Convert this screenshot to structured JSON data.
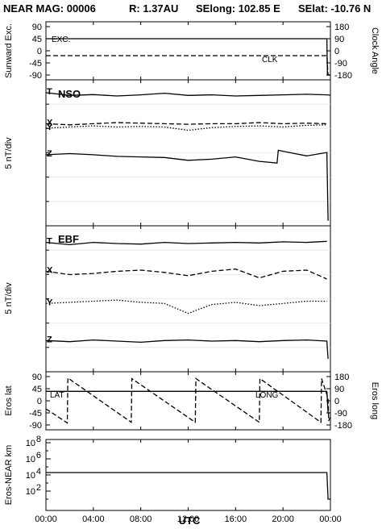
{
  "header": {
    "mission": "NEAR MAG: 00006",
    "distance": "R: 1.37AU",
    "selong": "SElong:  102.85 E",
    "selat": "SElat:  -10.76 N"
  },
  "chart_data": [
    {
      "type": "line",
      "panel": "sunward",
      "ylabel_left": "Sunward Exc.",
      "ylabel_right": "Clock Angle",
      "yticks_left": [
        "90",
        "45",
        "0",
        "-45",
        "-90"
      ],
      "yticks_right": [
        "180",
        "90",
        "0",
        "-90",
        "-180"
      ],
      "ylim_left": [
        -90,
        90
      ],
      "ylim_right": [
        -180,
        180
      ],
      "series": [
        {
          "name": "EXC.",
          "style": "solid",
          "x": [
            0,
            23.7,
            23.75,
            24.0
          ],
          "y": [
            45,
            45,
            -90,
            -90
          ]
        },
        {
          "name": "CLK",
          "style": "dashed",
          "x": [
            0,
            23.7,
            23.8,
            24.0
          ],
          "y": [
            -18,
            -18,
            -130,
            -120
          ]
        }
      ]
    },
    {
      "type": "line",
      "panel": "NSO",
      "title": "NSO",
      "ylabel": "5 nT/div",
      "series": [
        {
          "name": "T",
          "style": "solid",
          "x": [
            0,
            2,
            4,
            6,
            8,
            10,
            12,
            14,
            16,
            18,
            20,
            22,
            23.7,
            24.0
          ],
          "y": [
            0.6,
            0.1,
            0.25,
            0.0,
            0.2,
            0.5,
            0.1,
            0.2,
            0.0,
            0.1,
            0.2,
            0.3,
            0.2,
            0.15
          ]
        },
        {
          "name": "X",
          "style": "dashed",
          "x": [
            0,
            2,
            4,
            6,
            8,
            10,
            12,
            14,
            16,
            18,
            20,
            22,
            23.7
          ],
          "y": [
            -5.0,
            -5.2,
            -5.0,
            -4.8,
            -4.9,
            -5.0,
            -5.1,
            -5.0,
            -5.0,
            -4.8,
            -5.0,
            -4.9,
            -5.0
          ]
        },
        {
          "name": "Y",
          "style": "dotted",
          "x": [
            0,
            2,
            4,
            6,
            8,
            10,
            12,
            14,
            16,
            18,
            20,
            22,
            23.7
          ],
          "y": [
            -5.8,
            -5.6,
            -5.4,
            -5.6,
            -5.5,
            -5.6,
            -6.2,
            -5.7,
            -5.5,
            -5.4,
            -5.6,
            -5.3,
            -5.2
          ]
        },
        {
          "name": "Z",
          "style": "solid",
          "x": [
            0,
            2,
            4,
            6,
            8,
            10,
            12,
            14,
            16,
            18,
            19.5,
            19.6,
            21,
            22,
            23.7,
            23.8
          ],
          "y": [
            -10.6,
            -10.4,
            -10.6,
            -10.9,
            -11.0,
            -11.1,
            -11.6,
            -11.4,
            -11.0,
            -11.8,
            -12.1,
            -9.8,
            -10.4,
            -10.8,
            -10.2,
            -22.5
          ]
        }
      ]
    },
    {
      "type": "line",
      "panel": "EBF",
      "title": "EBF",
      "ylabel": "5 nT/div",
      "series": [
        {
          "name": "T",
          "style": "solid",
          "x": [
            0,
            2,
            4,
            6,
            8,
            10,
            12,
            14,
            16,
            18,
            20,
            22,
            23.7
          ],
          "y": [
            0.2,
            -0.2,
            0.2,
            0.0,
            -0.1,
            0.2,
            0.0,
            0.1,
            0.2,
            0.1,
            0.3,
            0.2,
            0.4
          ]
        },
        {
          "name": "X",
          "style": "dashed",
          "x": [
            0,
            2,
            4,
            6,
            8,
            10,
            12,
            14,
            16,
            18,
            20,
            22,
            23.7
          ],
          "y": [
            -5.0,
            -5.6,
            -5.4,
            -5.0,
            -4.8,
            -5.2,
            -5.8,
            -5.0,
            -4.6,
            -6.2,
            -5.0,
            -4.8,
            -6.4
          ]
        },
        {
          "name": "Y",
          "style": "dotted",
          "x": [
            0,
            2,
            4,
            6,
            8,
            10,
            12,
            14,
            16,
            18,
            20,
            22,
            23.7
          ],
          "y": [
            -10.8,
            -10.6,
            -10.4,
            -10.2,
            -10.6,
            -10.8,
            -12.6,
            -11.0,
            -10.6,
            -11.2,
            -10.8,
            -10.4,
            -10.4
          ]
        },
        {
          "name": "Z",
          "style": "solid",
          "x": [
            0,
            2,
            4,
            6,
            8,
            10,
            12,
            14,
            16,
            18,
            20,
            22,
            23.7,
            23.8
          ],
          "y": [
            -17.5,
            -17.7,
            -17.4,
            -17.6,
            -17.8,
            -17.5,
            -17.4,
            -17.6,
            -17.5,
            -17.7,
            -17.5,
            -17.4,
            -17.6,
            -20.8
          ]
        }
      ]
    },
    {
      "type": "line",
      "panel": "eros",
      "ylabel_left": "Eros lat",
      "ylabel_right": "Eros long",
      "yticks_left": [
        "90",
        "45",
        "0",
        "-45",
        "-90"
      ],
      "yticks_right": [
        "180",
        "90",
        "0",
        "-90",
        "-180"
      ],
      "ylim_left": [
        -90,
        90
      ],
      "ylim_right": [
        -180,
        180
      ],
      "series": [
        {
          "name": "LAT",
          "style": "solid",
          "x": [
            0,
            23.7,
            23.8,
            24.0
          ],
          "y": [
            35,
            35,
            -45,
            -45
          ]
        },
        {
          "name": "LONG",
          "style": "dashed",
          "x": [
            0,
            1.8,
            1.85,
            7.2,
            7.25,
            12.6,
            12.65,
            18.0,
            18.05,
            23.2,
            23.25,
            23.8,
            23.85,
            24.0
          ],
          "y": [
            -60,
            -165,
            170,
            -160,
            165,
            -160,
            165,
            -160,
            165,
            -160,
            165,
            20,
            -150,
            -120
          ]
        }
      ]
    },
    {
      "type": "line",
      "panel": "distance",
      "ylabel": "Eros-NEAR km",
      "yscale": "log",
      "yticks": [
        "10^8",
        "10^6",
        "10^4",
        "10^2"
      ],
      "ylim": [
        1,
        100000000
      ],
      "series": [
        {
          "name": "",
          "style": "solid",
          "x": [
            0,
            23.7,
            23.8,
            24.0
          ],
          "y": [
            20000,
            20000,
            10,
            10
          ]
        }
      ]
    }
  ],
  "xaxis": {
    "label": "UTC",
    "ticks": [
      "00:00",
      "04:00",
      "08:00",
      "12:00",
      "16:00",
      "20:00",
      "00:00"
    ],
    "range": [
      0,
      24
    ]
  }
}
